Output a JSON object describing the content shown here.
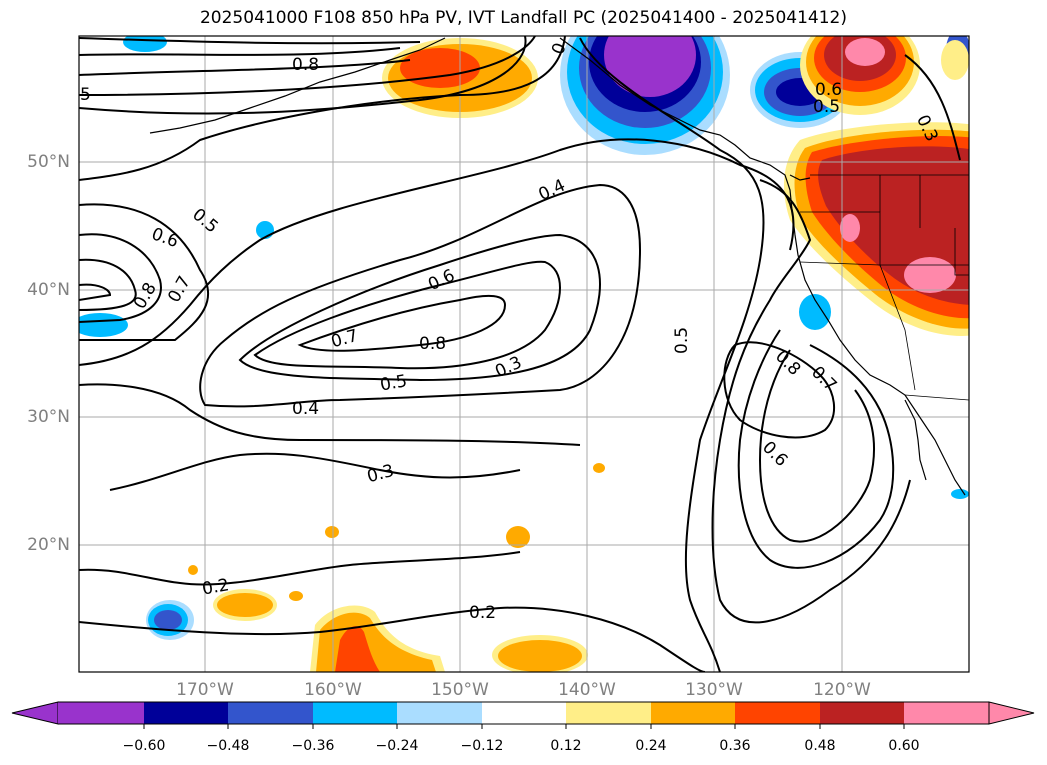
{
  "title": "2025041000 F108 850 hPa PV, IVT Landfall PC (2025041400 - 2025041412)",
  "map": {
    "lat_labels": [
      "50°N",
      "40°N",
      "30°N",
      "20°N"
    ],
    "lon_labels": [
      "170°W",
      "160°W",
      "150°W",
      "140°W",
      "130°W",
      "120°W"
    ],
    "contour_labels": [
      "0.8",
      "5",
      "0",
      "0.6",
      "0.5",
      "0.3",
      "0.4",
      "0.5",
      "0.6",
      "0.8",
      "0.7",
      "0.6",
      "0.7",
      "0.8",
      "0.5",
      "0.3",
      "0.4",
      "0.5",
      "0.8",
      "0.7",
      "0.6",
      "0.3",
      "0.2",
      "0.2"
    ]
  },
  "colorbar": {
    "ticks": [
      "−0.60",
      "−0.48",
      "−0.36",
      "−0.24",
      "−0.12",
      "0.12",
      "0.24",
      "0.36",
      "0.48",
      "0.60"
    ],
    "colors": [
      "#9933cc",
      "#000099",
      "#3355cc",
      "#00bbff",
      "#aaddff",
      "#ffffff",
      "#ffee88",
      "#ffaa00",
      "#ff4400",
      "#bb2222",
      "#ff88aa"
    ]
  }
}
